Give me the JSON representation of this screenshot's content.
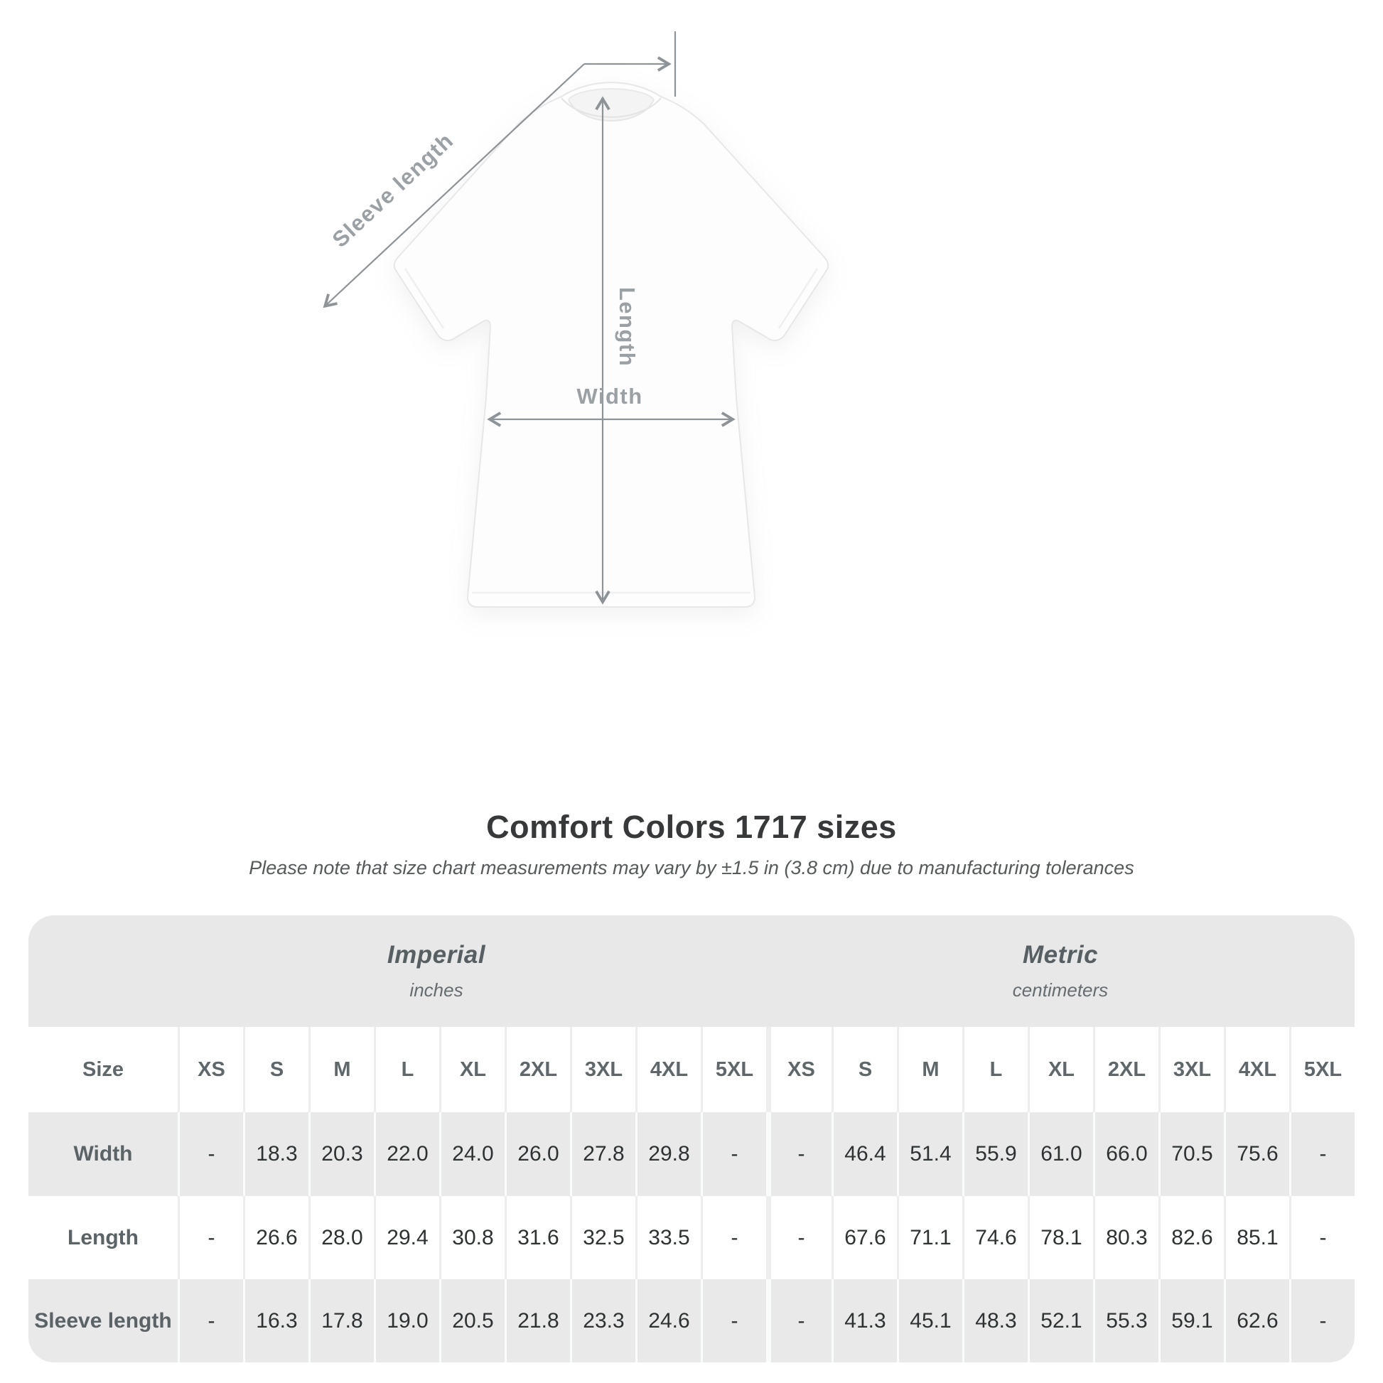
{
  "diagram": {
    "labels": {
      "sleeve": "Sleeve length",
      "length": "Length",
      "width": "Width"
    },
    "line_color": "#8e9397",
    "label_color": "#9aa0a3",
    "shirt_color": "#fdfdfd"
  },
  "title": "Comfort Colors 1717 sizes",
  "subtitle": "Please note that size chart measurements may vary by ±1.5 in (3.8 cm) due to manufacturing tolerances",
  "table": {
    "imperial_label": "Imperial",
    "imperial_sublabel": "inches",
    "metric_label": "Metric",
    "metric_sublabel": "centimeters",
    "size_header": "Size",
    "band_bg": "#e8e8e9",
    "stripe_bg": "#e9e9ea"
  },
  "chart_data": {
    "type": "table",
    "title": "Comfort Colors 1717 sizes",
    "sections": [
      "Imperial (inches)",
      "Metric (centimeters)"
    ],
    "sizes": [
      "XS",
      "S",
      "M",
      "L",
      "XL",
      "2XL",
      "3XL",
      "4XL",
      "5XL"
    ],
    "rows": [
      {
        "label": "Width",
        "imperial": [
          "-",
          "18.3",
          "20.3",
          "22.0",
          "24.0",
          "26.0",
          "27.8",
          "29.8",
          "-"
        ],
        "metric": [
          "-",
          "46.4",
          "51.4",
          "55.9",
          "61.0",
          "66.0",
          "70.5",
          "75.6",
          "-"
        ]
      },
      {
        "label": "Length",
        "imperial": [
          "-",
          "26.6",
          "28.0",
          "29.4",
          "30.8",
          "31.6",
          "32.5",
          "33.5",
          "-"
        ],
        "metric": [
          "-",
          "67.6",
          "71.1",
          "74.6",
          "78.1",
          "80.3",
          "82.6",
          "85.1",
          "-"
        ]
      },
      {
        "label": "Sleeve length",
        "imperial": [
          "-",
          "16.3",
          "17.8",
          "19.0",
          "20.5",
          "21.8",
          "23.3",
          "24.6",
          "-"
        ],
        "metric": [
          "-",
          "41.3",
          "45.1",
          "48.3",
          "52.1",
          "55.3",
          "59.1",
          "62.6",
          "-"
        ]
      }
    ]
  }
}
